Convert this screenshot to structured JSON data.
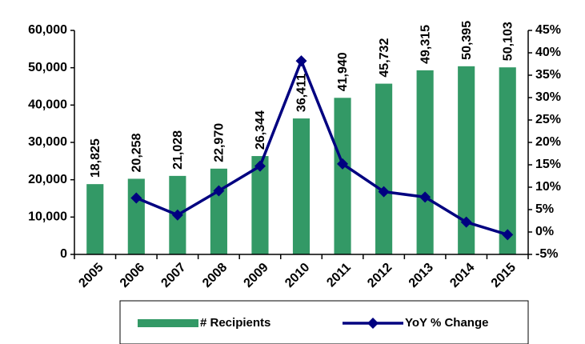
{
  "chart_data": {
    "type": "bar",
    "categories": [
      "2005",
      "2006",
      "2007",
      "2008",
      "2009",
      "2010",
      "2011",
      "2012",
      "2013",
      "2014",
      "2015"
    ],
    "series": [
      {
        "name": "# Recipients",
        "color": "#339966",
        "type": "bar",
        "values": [
          18825,
          20258,
          21028,
          22970,
          26344,
          36411,
          41940,
          45732,
          49315,
          50395,
          50103
        ],
        "value_labels": [
          "18,825",
          "20,258",
          "21,028",
          "22,970",
          "26,344",
          "36,411",
          "41,940",
          "45,732",
          "49,315",
          "50,395",
          "50,103"
        ]
      },
      {
        "name": "YoY % Change",
        "color": "#000080",
        "type": "line",
        "axis": "y2",
        "values": [
          null,
          7.6,
          3.8,
          9.2,
          14.7,
          38.2,
          15.2,
          9.0,
          7.8,
          2.2,
          -0.6
        ]
      }
    ],
    "ylim": [
      0,
      60000
    ],
    "yticks": [
      0,
      {
        "value": 10000,
        "label": "10,000"
      },
      {
        "value": 20000,
        "label": "20,000"
      },
      {
        "value": 30000,
        "label": "30,000"
      },
      {
        "value": 40000,
        "label": "40,000"
      },
      {
        "value": 50000,
        "label": "50,000"
      },
      {
        "value": 60000,
        "label": "60,000"
      }
    ],
    "y2lim": [
      -5,
      45
    ],
    "y2ticks": [
      {
        "value": -5,
        "label": "-5%"
      },
      {
        "value": 0,
        "label": "0%"
      },
      {
        "value": 5,
        "label": "5%"
      },
      {
        "value": 10,
        "label": "10%"
      },
      {
        "value": 15,
        "label": "15%"
      },
      {
        "value": 20,
        "label": "20%"
      },
      {
        "value": 25,
        "label": "25%"
      },
      {
        "value": 30,
        "label": "30%"
      },
      {
        "value": 35,
        "label": "35%"
      },
      {
        "value": 40,
        "label": "40%"
      },
      {
        "value": 45,
        "label": "45%"
      }
    ],
    "legend": "bottom"
  }
}
